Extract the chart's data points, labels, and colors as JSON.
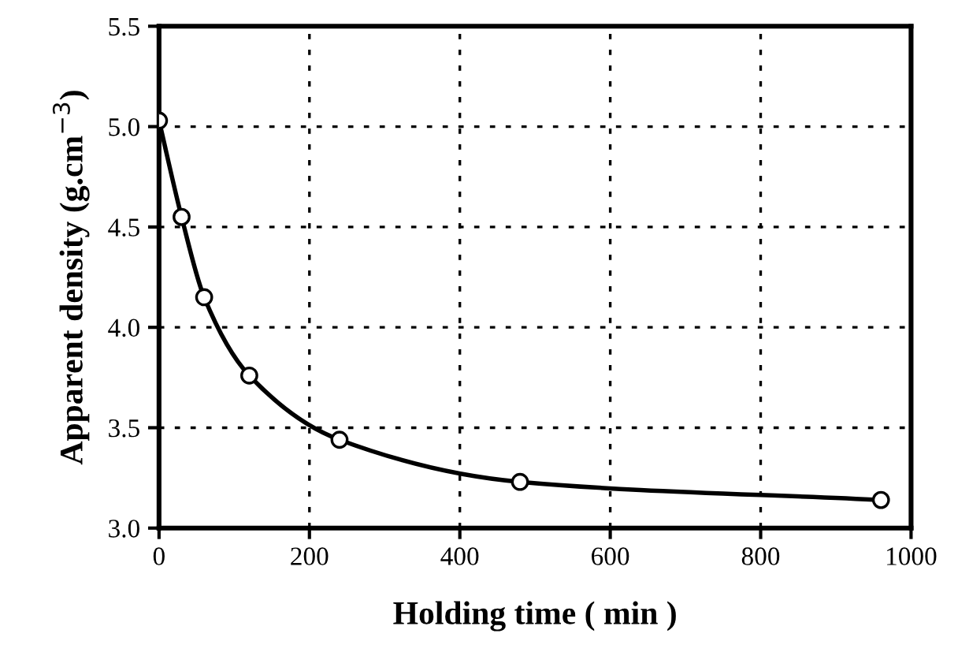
{
  "chart_data": {
    "type": "line",
    "xlabel": "Holding time ( min )",
    "ylabel": "Apparent density (g.cm$^{−3}$)",
    "x": [
      0,
      30,
      60,
      120,
      240,
      480,
      960
    ],
    "series": [
      {
        "color": "#000000",
        "values": [
          5.03,
          4.55,
          4.15,
          3.76,
          3.44,
          3.23,
          3.14
        ]
      }
    ],
    "xlim": [
      0,
      1000
    ],
    "xticks": [
      0,
      200,
      400,
      600,
      800,
      1000
    ],
    "ylim": [
      3.0,
      5.5
    ],
    "yticks": [
      {
        "value": 3.0,
        "label": "3.0"
      },
      {
        "value": 3.5,
        "label": "3.5"
      },
      {
        "value": 4.0,
        "label": "4.0"
      },
      {
        "value": 4.5,
        "label": "4.5"
      },
      {
        "value": 5.0,
        "label": "5.0"
      },
      {
        "value": 5.5,
        "label": "5.5"
      }
    ],
    "grid": true,
    "marker": "circle",
    "line_style": "solid"
  }
}
